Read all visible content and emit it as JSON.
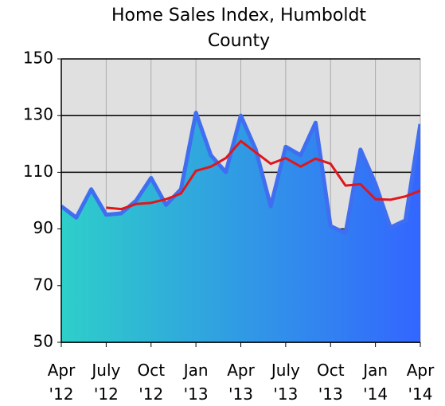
{
  "chart_data": {
    "type": "area",
    "title": "Home Sales Index, Humboldt County",
    "categories": [
      "Apr '12",
      null,
      null,
      "July '12",
      null,
      null,
      "Oct '12",
      null,
      null,
      "Jan '13",
      null,
      null,
      "Apr '13",
      null,
      null,
      "July '13",
      null,
      null,
      "Oct '13",
      null,
      null,
      "Jan '14",
      null,
      null,
      "Apr '14"
    ],
    "series": [
      {
        "type": "area",
        "color": "#3f6ff0",
        "gradient": [
          "#2ecfc9",
          "#3366ff"
        ],
        "values": [
          98,
          94,
          104,
          95,
          95.5,
          100,
          108,
          98.5,
          104,
          131,
          116,
          110,
          130,
          118,
          98,
          119,
          116,
          127.5,
          91,
          88.5,
          118,
          106,
          90.5,
          93,
          127
        ]
      },
      {
        "type": "line",
        "color": "#e0161b",
        "values": [
          null,
          null,
          null,
          97.5,
          97,
          98.8,
          99.2,
          100.5,
          102.5,
          110.5,
          112,
          115,
          121,
          117,
          113,
          115,
          112,
          114.8,
          113,
          105.3,
          105.8,
          100.5,
          100.3,
          101.5,
          103.5
        ]
      }
    ],
    "ylim": [
      50,
      150
    ],
    "yticks": [
      50,
      70,
      90,
      110,
      130,
      150
    ],
    "grid": true
  }
}
